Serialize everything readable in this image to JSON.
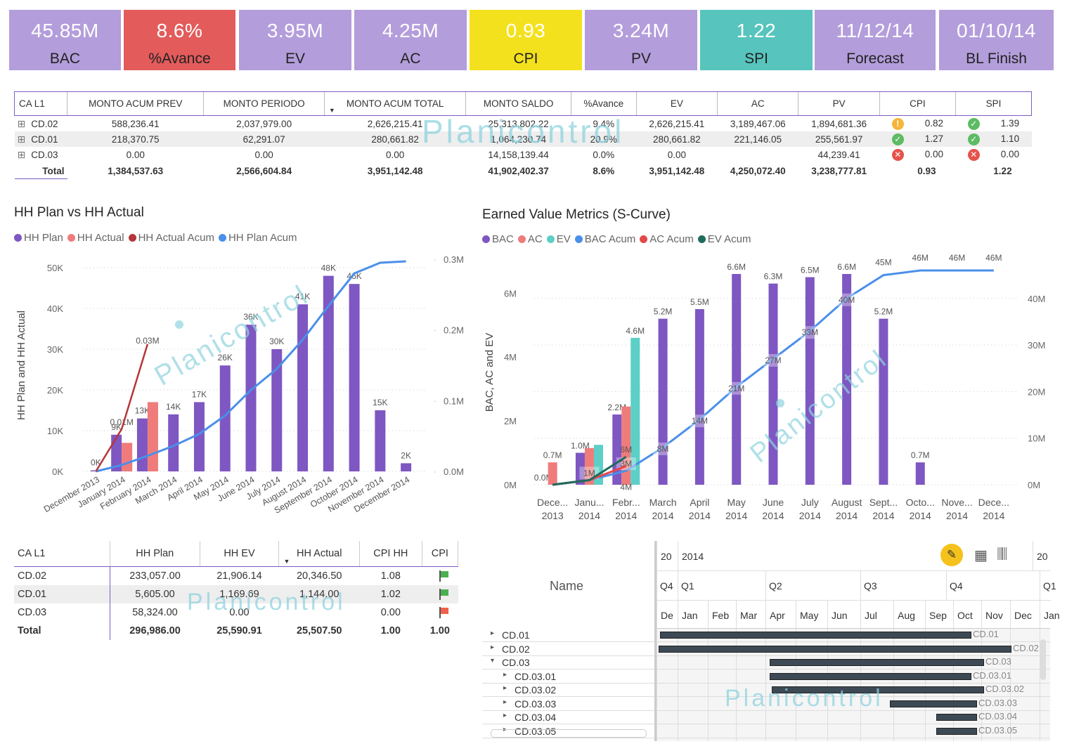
{
  "kpis": [
    {
      "value": "45.85M",
      "label": "BAC",
      "bg": "#b39ddb"
    },
    {
      "value": "8.6%",
      "label": "%Avance",
      "bg": "#e35b5b"
    },
    {
      "value": "3.95M",
      "label": "EV",
      "bg": "#b39ddb"
    },
    {
      "value": "4.25M",
      "label": "AC",
      "bg": "#b39ddb"
    },
    {
      "value": "0.93",
      "label": "CPI",
      "bg": "#f4e11e"
    },
    {
      "value": "3.24M",
      "label": "PV",
      "bg": "#b39ddb"
    },
    {
      "value": "1.22",
      "label": "SPI",
      "bg": "#57c4bd"
    },
    {
      "value": "11/12/14",
      "label": "Forecast",
      "bg": "#b39ddb"
    },
    {
      "value": "01/10/14",
      "label": "BL Finish",
      "bg": "#b39ddb"
    }
  ],
  "cost_table": {
    "headers": [
      "CA L1",
      "MONTO ACUM PREV",
      "MONTO PERIODO",
      "MONTO ACUM TOTAL",
      "MONTO SALDO",
      "%Avance",
      "EV",
      "AC",
      "PV",
      "CPI",
      "SPI"
    ],
    "rows": [
      {
        "ca": "CD.02",
        "prev": "588,236.41",
        "periodo": "2,037,979.00",
        "total": "2,626,215.41",
        "saldo": "25,313,802.22",
        "avance": "9.4%",
        "ev": "2,626,215.41",
        "ac": "3,189,467.06",
        "pv": "1,894,681.36",
        "cpi_icon": "warning-icon",
        "cpi": "0.82",
        "spi_icon": "check-icon",
        "spi": "1.39"
      },
      {
        "ca": "CD.01",
        "prev": "218,370.75",
        "periodo": "62,291.07",
        "total": "280,661.82",
        "saldo": "1,064,230.74",
        "avance": "20.9%",
        "ev": "280,661.82",
        "ac": "221,146.05",
        "pv": "255,561.97",
        "cpi_icon": "check-icon",
        "cpi": "1.27",
        "spi_icon": "check-icon",
        "spi": "1.10"
      },
      {
        "ca": "CD.03",
        "prev": "0.00",
        "periodo": "0.00",
        "total": "0.00",
        "saldo": "14,158,139.44",
        "avance": "0.0%",
        "ev": "0.00",
        "ac": "",
        "pv": "44,239.41",
        "cpi_icon": "x-icon",
        "cpi": "0.00",
        "spi_icon": "x-icon",
        "spi": "0.00"
      }
    ],
    "total": {
      "ca": "Total",
      "prev": "1,384,537.63",
      "periodo": "2,566,604.84",
      "total": "3,951,142.48",
      "saldo": "41,902,402.37",
      "avance": "8.6%",
      "ev": "3,951,142.48",
      "ac": "4,250,072.40",
      "pv": "3,238,777.81",
      "cpi": "0.93",
      "spi": "1.22"
    }
  },
  "watermark": "Planicontrol",
  "hh_chart": {
    "title": "HH Plan vs HH Actual",
    "legend": [
      {
        "name": "HH Plan",
        "color": "#7e57c2"
      },
      {
        "name": "HH Actual",
        "color": "#ef7b7b"
      },
      {
        "name": "HH Actual Acum",
        "color": "#b5363a"
      },
      {
        "name": "HH Plan Acum",
        "color": "#4a8fea"
      }
    ],
    "ylabel": "HH Plan and HH Actual",
    "y_ticks": [
      "50K",
      "40K",
      "30K",
      "20K",
      "10K",
      "0K"
    ],
    "y2_ticks": [
      "0.3M",
      "0.2M",
      "0.1M",
      "0.0M"
    ]
  },
  "ev_chart": {
    "title": "Earned Value Metrics (S-Curve)",
    "legend": [
      {
        "name": "BAC",
        "color": "#7e57c2"
      },
      {
        "name": "AC",
        "color": "#ef7b7b"
      },
      {
        "name": "EV",
        "color": "#5ccfc7"
      },
      {
        "name": "BAC Acum",
        "color": "#4a8fea"
      },
      {
        "name": "AC Acum",
        "color": "#e34848"
      },
      {
        "name": "EV Acum",
        "color": "#1f6b5d"
      }
    ],
    "ylabel": "BAC, AC and EV",
    "y_ticks": [
      "6M",
      "4M",
      "2M",
      "0M"
    ],
    "y2_ticks": [
      "40M",
      "30M",
      "20M",
      "10M",
      "0M"
    ]
  },
  "chart_data": [
    {
      "type": "bar",
      "title": "HH Plan vs HH Actual",
      "ylabel": "HH Plan and HH Actual",
      "categories": [
        "December 2013",
        "January 2014",
        "February 2014",
        "March 2014",
        "April 2014",
        "May 2014",
        "June 2014",
        "July 2014",
        "August 2014",
        "September 2014",
        "October 2014",
        "November 2014",
        "December 2014"
      ],
      "ylim": [
        0,
        50000
      ],
      "y2lim": [
        0,
        300000
      ],
      "series": [
        {
          "name": "HH Plan",
          "values": [
            0,
            9000,
            13000,
            14000,
            17000,
            26000,
            36000,
            30000,
            41000,
            48000,
            46000,
            15000,
            2000
          ],
          "labels": [
            "0K",
            "9K",
            "13K",
            "14K",
            "17K",
            "26K",
            "36K",
            "30K",
            "41K",
            "48K",
            "46K",
            "15K",
            "2K"
          ]
        },
        {
          "name": "HH Actual",
          "values": [
            0,
            7000,
            17000,
            null,
            null,
            null,
            null,
            null,
            null,
            null,
            null,
            null,
            null
          ]
        },
        {
          "name": "HH Actual Acum",
          "values": [
            0,
            10000,
            30000,
            null,
            null,
            null,
            null,
            null,
            null,
            null,
            null,
            null,
            null
          ],
          "labels": [
            "",
            "0.01M",
            "0.03M",
            "",
            "",
            "",
            "",
            "",
            "",
            "",
            "",
            "",
            ""
          ]
        },
        {
          "name": "HH Plan Acum",
          "values": [
            0,
            9000,
            22000,
            36000,
            53000,
            79000,
            115000,
            145000,
            186000,
            234000,
            280000,
            295000,
            297000
          ]
        }
      ]
    },
    {
      "type": "bar",
      "title": "Earned Value Metrics (S-Curve)",
      "ylabel": "BAC, AC and EV",
      "categories": [
        "Dece... 2013",
        "Janu... 2014",
        "Febr... 2014",
        "March 2014",
        "April 2014",
        "May 2014",
        "June 2014",
        "July 2014",
        "August 2014",
        "Sept... 2014",
        "Octo... 2014",
        "Nove... 2014",
        "Dece... 2014"
      ],
      "ylim": [
        0,
        6600000
      ],
      "y2lim": [
        0,
        46000000
      ],
      "series": [
        {
          "name": "BAC",
          "values": [
            0,
            1000000,
            2200000,
            5200000,
            5500000,
            6600000,
            6300000,
            6500000,
            6600000,
            5200000,
            700000,
            0,
            0
          ],
          "labels": [
            "0.0M",
            "1.0M",
            "2.2M",
            "5.2M",
            "5.5M",
            "6.6M",
            "6.3M",
            "6.5M",
            "6.6M",
            "5.2M",
            "0.7M",
            "",
            ""
          ]
        },
        {
          "name": "AC",
          "values": [
            700000,
            1150000,
            2450000,
            null,
            null,
            null,
            null,
            null,
            null,
            null,
            null,
            null,
            null
          ],
          "labels": [
            "0.7M",
            "",
            "",
            "",
            "",
            "",
            "",
            "",
            "",
            "",
            "",
            "",
            ""
          ]
        },
        {
          "name": "EV",
          "values": [
            0,
            1250000,
            4600000,
            null,
            null,
            null,
            null,
            null,
            null,
            null,
            null,
            null,
            null
          ],
          "labels": [
            "",
            "",
            "4.6M",
            "",
            "",
            "",
            "",
            "",
            "",
            "",
            "",
            "",
            ""
          ]
        },
        {
          "name": "BAC Acum",
          "values": [
            0,
            1000000,
            3000000,
            8000000,
            14000000,
            21000000,
            27000000,
            33000000,
            40000000,
            45000000,
            46000000,
            46000000,
            46000000
          ],
          "labels": [
            "",
            "1M",
            "3M",
            "8M",
            "14M",
            "21M",
            "27M",
            "33M",
            "40M",
            "45M",
            "46M",
            "46M",
            "46M"
          ]
        },
        {
          "name": "AC Acum",
          "values": [
            0,
            1000000,
            4000000,
            null,
            null,
            null,
            null,
            null,
            null,
            null,
            null,
            null,
            null
          ],
          "labels": [
            "",
            "",
            "4M",
            "",
            "",
            "",
            "",
            "",
            "",
            "",
            "",
            "",
            ""
          ]
        },
        {
          "name": "EV Acum",
          "values": [
            0,
            1000000,
            6000000,
            null,
            null,
            null,
            null,
            null,
            null,
            null,
            null,
            null,
            null
          ],
          "labels": [
            "",
            "",
            "6M",
            "",
            "",
            "",
            "",
            "",
            "",
            "",
            "",
            "",
            ""
          ]
        }
      ]
    }
  ],
  "hh_table": {
    "headers": [
      "CA L1",
      "HH Plan",
      "HH EV",
      "HH Actual",
      "CPI HH",
      "CPI"
    ],
    "rows": [
      {
        "ca": "CD.02",
        "plan": "233,057.00",
        "ev": "21,906.14",
        "actual": "20,346.50",
        "cpihh": "1.08",
        "flag": "green"
      },
      {
        "ca": "CD.01",
        "plan": "5,605.00",
        "ev": "1,169.69",
        "actual": "1,144.00",
        "cpihh": "1.02",
        "flag": "green"
      },
      {
        "ca": "CD.03",
        "plan": "58,324.00",
        "ev": "0.00",
        "actual": "",
        "cpihh": "0.00",
        "flag": "red"
      }
    ],
    "total": {
      "ca": "Total",
      "plan": "296,986.00",
      "ev": "25,590.91",
      "actual": "25,507.50",
      "cpihh": "1.00",
      "cpi": "1.00"
    }
  },
  "gantt": {
    "name_header": "Name",
    "years": [
      "20",
      "2014",
      "20"
    ],
    "quarters": [
      "Q4",
      "Q1",
      "Q2",
      "Q3",
      "Q4",
      "Q1"
    ],
    "months": [
      "De",
      "Jan",
      "Feb",
      "Mar",
      "Apr",
      "May",
      "Jun",
      "Jul",
      "Aug",
      "Sep",
      "Oct",
      "Nov",
      "Dec",
      "Jan"
    ],
    "tasks": [
      {
        "name": "CD.01",
        "label": "CD.01",
        "start": 0.15,
        "end": 10.6,
        "indent": 0,
        "arrow": "▸"
      },
      {
        "name": "CD.02",
        "label": "CD.02",
        "start": 0.1,
        "end": 12.0,
        "indent": 0,
        "arrow": "▸"
      },
      {
        "name": "CD.03",
        "label": "CD.03",
        "start": 4.15,
        "end": 11.05,
        "indent": 0,
        "arrow": "▾"
      },
      {
        "name": "CD.03.01",
        "label": "CD.03.01",
        "start": 4.15,
        "end": 10.6,
        "indent": 1,
        "arrow": "▸"
      },
      {
        "name": "CD.03.02",
        "label": "CD.03.02",
        "start": 4.2,
        "end": 11.05,
        "indent": 1,
        "arrow": "▸"
      },
      {
        "name": "CD.03.03",
        "label": "CD.03.03",
        "start": 7.9,
        "end": 10.8,
        "indent": 1,
        "arrow": "▸"
      },
      {
        "name": "CD.03.04",
        "label": "CD.03.04",
        "start": 9.4,
        "end": 10.8,
        "indent": 1,
        "arrow": "▸"
      },
      {
        "name": "CD.03.05",
        "label": "CD.03.05",
        "start": 9.4,
        "end": 10.8,
        "indent": 1,
        "arrow": "▸"
      }
    ]
  }
}
